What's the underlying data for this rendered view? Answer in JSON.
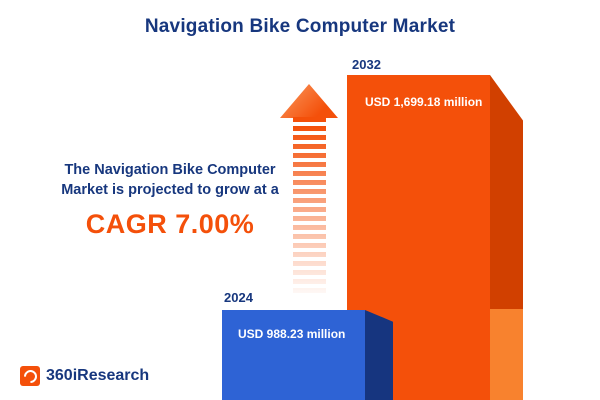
{
  "title": "Navigation Bike Computer Market",
  "annotation": {
    "line1": "The Navigation Bike Computer",
    "line2": "Market is projected to grow at a",
    "cagr": "CAGR 7.00%"
  },
  "logo": {
    "text": "360iResearch"
  },
  "colors": {
    "navy": "#17377e",
    "orange": "#f4500a",
    "orange_dark": "#d14000",
    "orange_light": "#f8822e",
    "blue": "#2e63d5",
    "blue_dark": "#16357f"
  },
  "chart_data": {
    "type": "bar",
    "title": "Navigation Bike Computer Market",
    "categories": [
      "2024",
      "2032"
    ],
    "values": [
      988.23,
      1699.18
    ],
    "value_labels": [
      "USD 988.23 million",
      "USD 1,699.18 million"
    ],
    "unit": "USD million",
    "series_colors": [
      "#2e63d5",
      "#f4500a"
    ],
    "ylim": [
      0,
      1800
    ],
    "grid": false,
    "legend": "none",
    "annotations": [
      "The Navigation Bike Computer Market is projected to grow at a CAGR 7.00%"
    ]
  }
}
